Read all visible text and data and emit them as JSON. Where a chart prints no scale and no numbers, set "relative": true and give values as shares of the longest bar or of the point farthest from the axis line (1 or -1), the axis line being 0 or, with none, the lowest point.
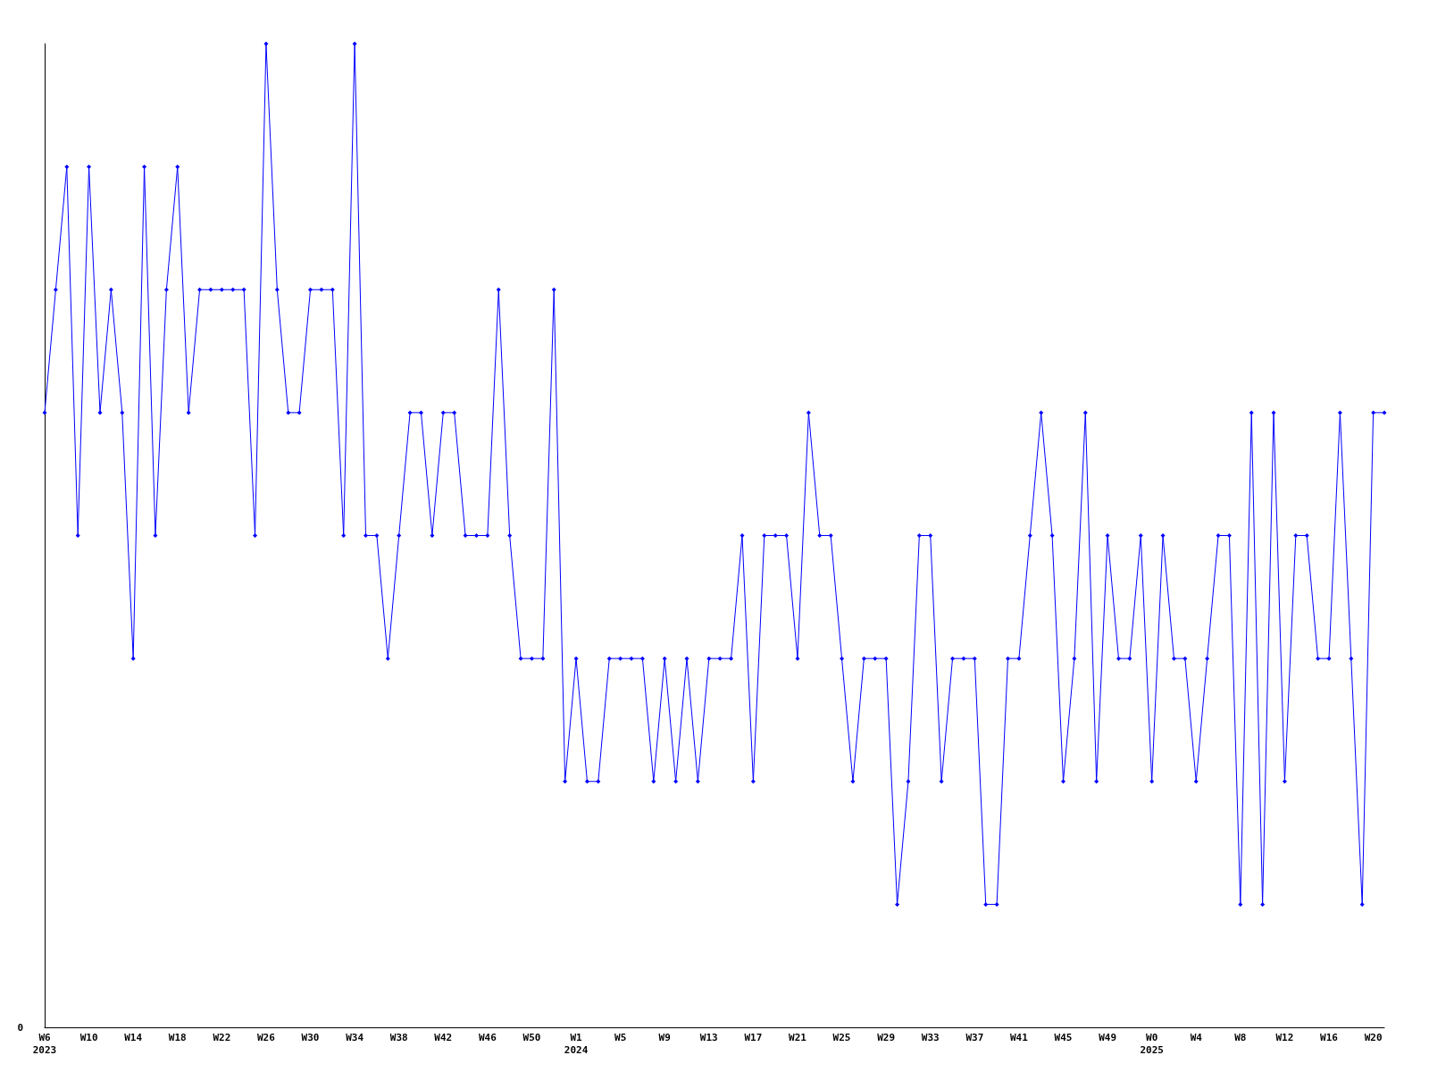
{
  "chart_data": {
    "type": "line",
    "relative": true,
    "marker": "diamond",
    "grid": false,
    "annotations": [
      "0"
    ],
    "categories": [
      "W6\n2023",
      null,
      null,
      null,
      "W10",
      null,
      null,
      null,
      "W14",
      null,
      null,
      null,
      "W18",
      null,
      null,
      null,
      "W22",
      null,
      null,
      null,
      "W26",
      null,
      null,
      null,
      "W30",
      null,
      null,
      null,
      "W34",
      null,
      null,
      null,
      "W38",
      null,
      null,
      null,
      "W42",
      null,
      null,
      null,
      "W46",
      null,
      null,
      null,
      "W50",
      null,
      null,
      null,
      "W1\n2024",
      null,
      null,
      null,
      "W5",
      null,
      null,
      null,
      "W9",
      null,
      null,
      null,
      "W13",
      null,
      null,
      null,
      "W17",
      null,
      null,
      null,
      "W21",
      null,
      null,
      null,
      "W25",
      null,
      null,
      null,
      "W29",
      null,
      null,
      null,
      "W33",
      null,
      null,
      null,
      "W37",
      null,
      null,
      null,
      "W41",
      null,
      null,
      null,
      "W45",
      null,
      null,
      null,
      "W49",
      null,
      null,
      null,
      "W0\n2025",
      null,
      null,
      null,
      "W4",
      null,
      null,
      null,
      "W8",
      null,
      null,
      null,
      "W12",
      null,
      null,
      null,
      "W16",
      null,
      null,
      null,
      "W20",
      null
    ],
    "series": [
      {
        "color": "#0000ff",
        "values": [
          0.625,
          0.75,
          0.875,
          0.5,
          0.875,
          0.625,
          0.75,
          0.625,
          0.375,
          0.875,
          0.5,
          0.75,
          0.875,
          0.625,
          0.75,
          0.75,
          0.75,
          0.75,
          0.75,
          0.5,
          1,
          0.75,
          0.625,
          0.625,
          0.75,
          0.75,
          0.75,
          0.5,
          1,
          0.5,
          0.5,
          0.375,
          0.5,
          0.625,
          0.625,
          0.5,
          0.625,
          0.625,
          0.5,
          0.5,
          0.5,
          0.75,
          0.5,
          0.375,
          0.375,
          0.375,
          0.75,
          0.25,
          0.375,
          0.25,
          0.25,
          0.375,
          0.375,
          0.375,
          0.375,
          0.25,
          0.375,
          0.25,
          0.375,
          0.25,
          0.375,
          0.375,
          0.375,
          0.5,
          0.25,
          0.5,
          0.5,
          0.5,
          0.375,
          0.625,
          0.5,
          0.5,
          0.375,
          0.25,
          0.375,
          0.375,
          0.375,
          0.125,
          0.25,
          0.5,
          0.5,
          0.25,
          0.375,
          0.375,
          0.375,
          0.125,
          0.125,
          0.375,
          0.375,
          0.5,
          0.625,
          0.5,
          0.25,
          0.375,
          0.625,
          0.25,
          0.5,
          0.375,
          0.375,
          0.5,
          0.25,
          0.5,
          0.375,
          0.375,
          0.25,
          0.375,
          0.5,
          0.5,
          0.125,
          0.625,
          0.125,
          0.625,
          0.25,
          0.5,
          0.5,
          0.375,
          0.375,
          0.625,
          0.375,
          0.125,
          0.625,
          0.625
        ]
      }
    ]
  }
}
